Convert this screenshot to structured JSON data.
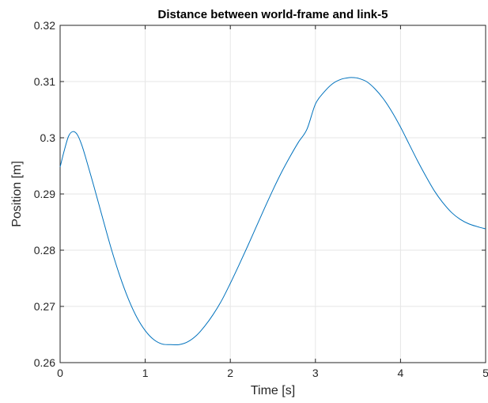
{
  "chart_data": {
    "type": "line",
    "title": "Distance between world-frame and link-5",
    "xlabel": "Time [s]",
    "ylabel": "Position [m]",
    "xlim": [
      0,
      5
    ],
    "ylim": [
      0.26,
      0.32
    ],
    "xticks": [
      0,
      1,
      2,
      3,
      4,
      5
    ],
    "xtick_labels": [
      "0",
      "1",
      "2",
      "3",
      "4",
      "5"
    ],
    "yticks": [
      0.26,
      0.27,
      0.28,
      0.29,
      0.3,
      0.31,
      0.32
    ],
    "ytick_labels": [
      "0.26",
      "0.27",
      "0.28",
      "0.29",
      "0.3",
      "0.31",
      "0.32"
    ],
    "grid": true,
    "line_color": "#0072BD",
    "series": [
      {
        "x": [
          0,
          0.05,
          0.1,
          0.15,
          0.2,
          0.25,
          0.3,
          0.4,
          0.5,
          0.6,
          0.7,
          0.8,
          0.9,
          1.0,
          1.1,
          1.2,
          1.3,
          1.4,
          1.5,
          1.6,
          1.7,
          1.8,
          1.9,
          2.0,
          2.1,
          2.2,
          2.3,
          2.4,
          2.5,
          2.6,
          2.7,
          2.8,
          2.9,
          3.0,
          3.1,
          3.2,
          3.3,
          3.4,
          3.45,
          3.5,
          3.6,
          3.7,
          3.8,
          3.9,
          4.0,
          4.1,
          4.2,
          4.3,
          4.4,
          4.5,
          4.6,
          4.7,
          4.8,
          4.9,
          5.0
        ],
        "y": [
          0.2948,
          0.2978,
          0.3003,
          0.3011,
          0.3006,
          0.2989,
          0.2965,
          0.2912,
          0.2857,
          0.2803,
          0.2755,
          0.2714,
          0.2681,
          0.2657,
          0.2641,
          0.2633,
          0.2632,
          0.2632,
          0.2637,
          0.2648,
          0.2665,
          0.2686,
          0.2711,
          0.2741,
          0.2773,
          0.2806,
          0.284,
          0.2874,
          0.2907,
          0.2938,
          0.2966,
          0.2992,
          0.3015,
          0.306,
          0.3081,
          0.3096,
          0.3104,
          0.3107,
          0.3107,
          0.3106,
          0.31,
          0.3087,
          0.3069,
          0.3046,
          0.3019,
          0.2989,
          0.2959,
          0.2931,
          0.2905,
          0.2884,
          0.2867,
          0.2855,
          0.2847,
          0.2842,
          0.2838
        ]
      }
    ]
  }
}
